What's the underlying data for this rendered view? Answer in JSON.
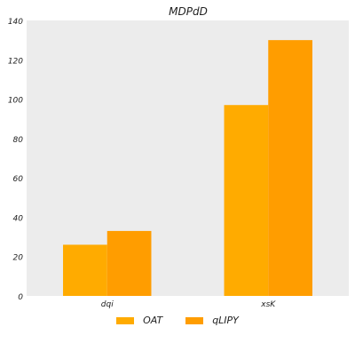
{
  "chart_data": {
    "type": "bar",
    "title": "MDPdD",
    "xlabel": "",
    "ylabel": "",
    "categories": [
      "dqi",
      "xsK"
    ],
    "series": [
      {
        "name": "OAT",
        "values": [
          26,
          97
        ],
        "color": "#ffab00"
      },
      {
        "name": "qLIPY",
        "values": [
          33,
          130
        ],
        "color": "#ff9d00"
      }
    ],
    "ylim": [
      0,
      140
    ],
    "yticks": [
      0,
      20,
      40,
      60,
      80,
      100,
      120,
      140
    ],
    "ytick_labels": [
      "0",
      "20",
      "40",
      "60",
      "80",
      "100",
      "120",
      "140"
    ],
    "grid": false,
    "legend": "bottom-center",
    "background": "#ececec"
  }
}
